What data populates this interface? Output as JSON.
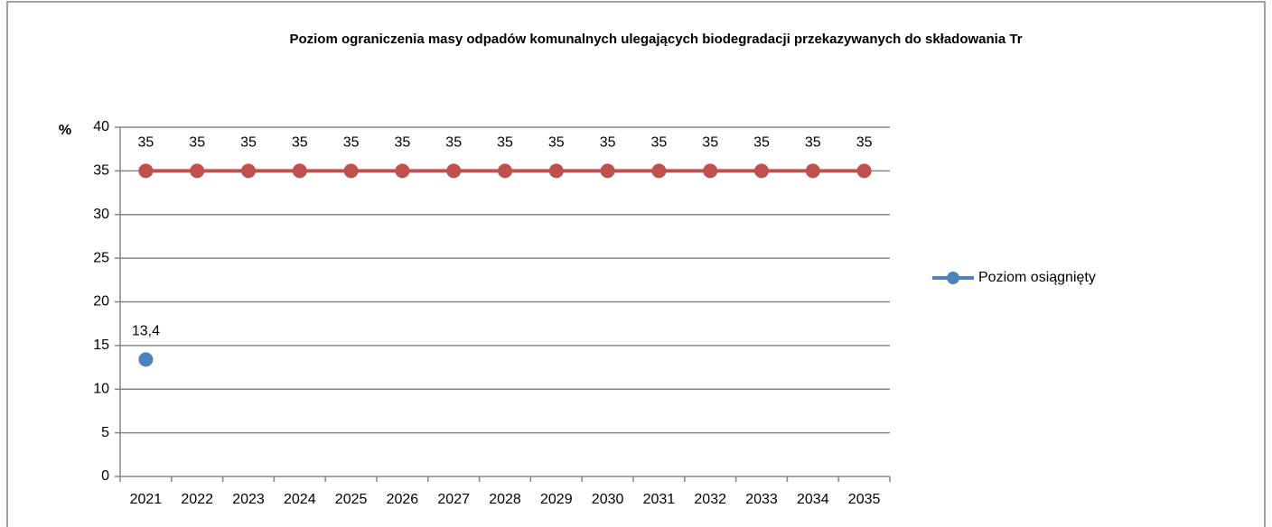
{
  "chart_data": {
    "type": "line",
    "title": "Poziom ograniczenia masy odpadów komunalnych ulegających biodegradacji przekazywanych do składowania Tr",
    "y_label": "%",
    "categories": [
      "2021",
      "2022",
      "2023",
      "2024",
      "2025",
      "2026",
      "2027",
      "2028",
      "2029",
      "2030",
      "2031",
      "2032",
      "2033",
      "2034",
      "2035"
    ],
    "series": [
      {
        "name": "Poziom osiągnięty",
        "color": "#4f81bd",
        "values": [
          13.4,
          null,
          null,
          null,
          null,
          null,
          null,
          null,
          null,
          null,
          null,
          null,
          null,
          null,
          null
        ],
        "value_labels": [
          "13,4",
          null,
          null,
          null,
          null,
          null,
          null,
          null,
          null,
          null,
          null,
          null,
          null,
          null,
          null
        ]
      },
      {
        "color": "#c0504d",
        "values": [
          35,
          35,
          35,
          35,
          35,
          35,
          35,
          35,
          35,
          35,
          35,
          35,
          35,
          35,
          35
        ]
      }
    ],
    "data_labels": true,
    "ylim": [
      0,
      40
    ],
    "yticks": [
      0,
      5,
      10,
      15,
      20,
      25,
      30,
      35,
      40
    ],
    "grid": true,
    "legend": "right"
  }
}
